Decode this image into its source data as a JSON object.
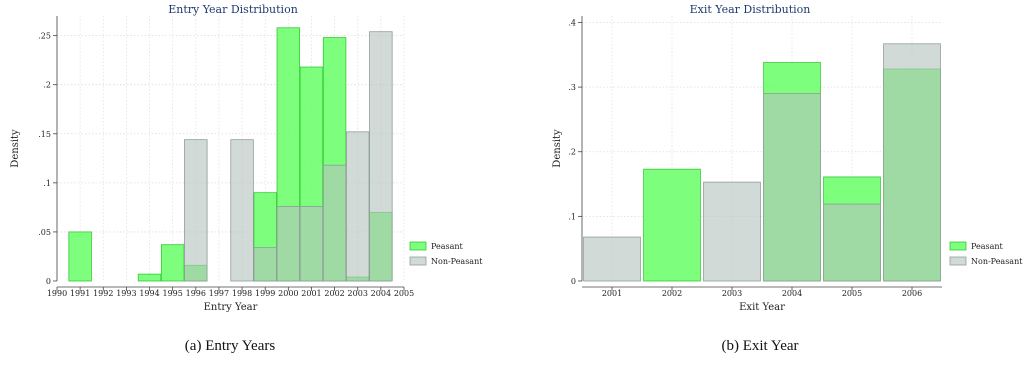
{
  "chart_data": [
    {
      "type": "bar",
      "title": "Entry Year Distribution",
      "xlabel": "Entry Year",
      "ylabel": "Density",
      "caption": "(a) Entry Years",
      "xlim": [
        1990,
        2005
      ],
      "ylim": [
        0,
        0.27
      ],
      "xticks": [
        1990,
        1991,
        1992,
        1993,
        1994,
        1995,
        1996,
        1997,
        1998,
        1999,
        2000,
        2001,
        2002,
        2003,
        2004,
        2005
      ],
      "yticks": [
        0,
        0.05,
        0.1,
        0.15,
        0.2,
        0.25
      ],
      "ytick_labels": [
        "0",
        ".05",
        ".1",
        ".15",
        ".2",
        ".25"
      ],
      "grid": true,
      "legend_position": "right",
      "series": [
        {
          "name": "Peasant",
          "color": "#66ff66",
          "bars": [
            {
              "x": 1991,
              "value": 0.05
            },
            {
              "x": 1994,
              "value": 0.007
            },
            {
              "x": 1995,
              "value": 0.037
            },
            {
              "x": 1996,
              "value": 0.016
            },
            {
              "x": 1999,
              "value": 0.09
            },
            {
              "x": 2000,
              "value": 0.258
            },
            {
              "x": 2001,
              "value": 0.218
            },
            {
              "x": 2002,
              "value": 0.248
            },
            {
              "x": 2003,
              "value": 0.004
            },
            {
              "x": 2004,
              "value": 0.07
            }
          ]
        },
        {
          "name": "Non-Peasant",
          "color": "#b4c3be",
          "bars": [
            {
              "x": 1996,
              "value": 0.144
            },
            {
              "x": 1998,
              "value": 0.144
            },
            {
              "x": 1999,
              "value": 0.034
            },
            {
              "x": 2000,
              "value": 0.076
            },
            {
              "x": 2001,
              "value": 0.076
            },
            {
              "x": 2002,
              "value": 0.118
            },
            {
              "x": 2003,
              "value": 0.152
            },
            {
              "x": 2004,
              "value": 0.254
            }
          ]
        }
      ]
    },
    {
      "type": "bar",
      "title": "Exit Year Distribution",
      "xlabel": "Exit Year",
      "ylabel": "Density",
      "caption": "(b) Exit Year",
      "xlim": [
        2000.5,
        2006.5
      ],
      "ylim": [
        0,
        0.41
      ],
      "xticks": [
        2001,
        2002,
        2003,
        2004,
        2005,
        2006
      ],
      "yticks": [
        0,
        0.1,
        0.2,
        0.3,
        0.4
      ],
      "ytick_labels": [
        "0",
        ".1",
        ".2",
        ".3",
        ".4"
      ],
      "grid": true,
      "legend_position": "right",
      "series": [
        {
          "name": "Peasant",
          "color": "#66ff66",
          "bars": [
            {
              "x": 2002,
              "value": 0.173
            },
            {
              "x": 2004,
              "value": 0.338
            },
            {
              "x": 2005,
              "value": 0.161
            },
            {
              "x": 2006,
              "value": 0.328
            }
          ]
        },
        {
          "name": "Non-Peasant",
          "color": "#b4c3be",
          "bars": [
            {
              "x": 2001,
              "value": 0.068
            },
            {
              "x": 2003,
              "value": 0.153
            },
            {
              "x": 2004,
              "value": 0.29
            },
            {
              "x": 2005,
              "value": 0.119
            },
            {
              "x": 2006,
              "value": 0.367
            }
          ]
        }
      ]
    }
  ]
}
